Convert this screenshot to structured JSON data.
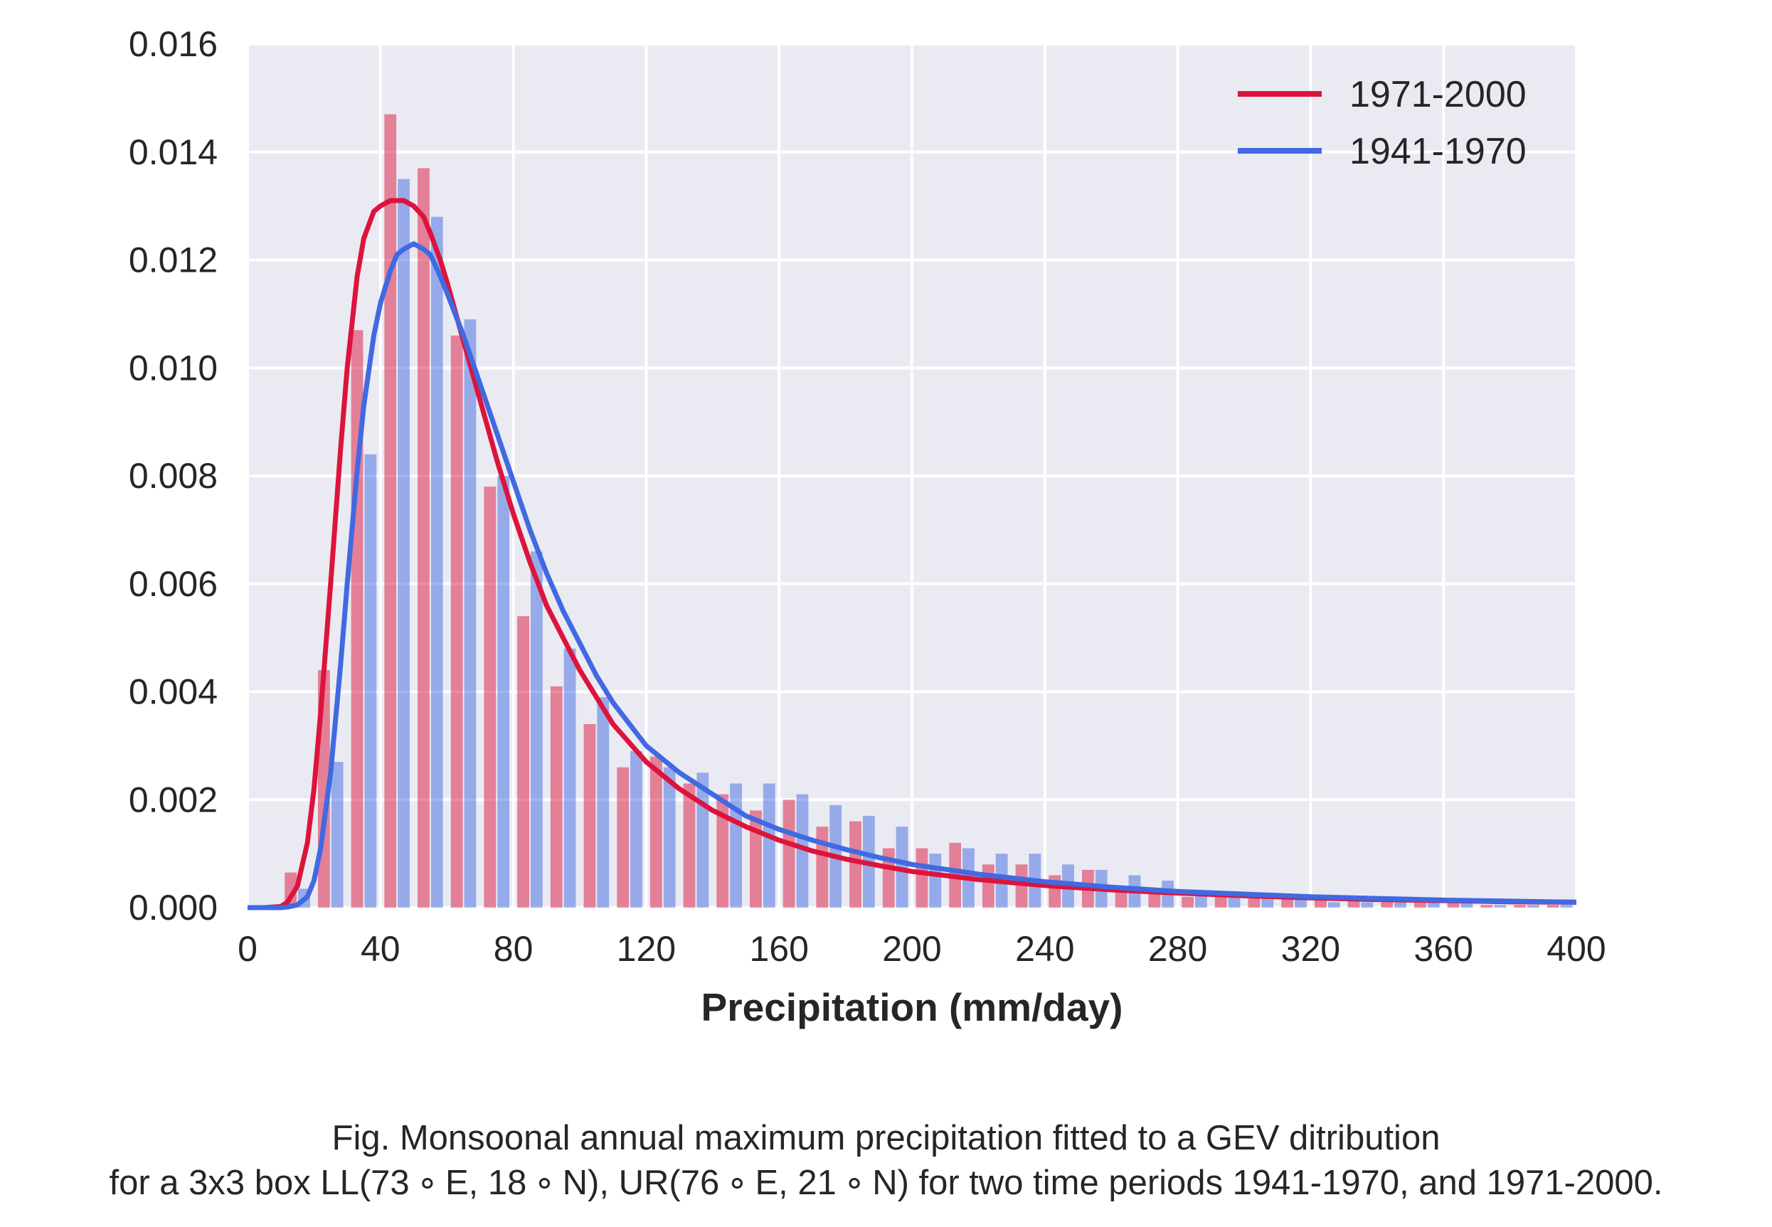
{
  "caption": {
    "line1": "Fig. Monsoonal annual maximum precipitation fitted to a GEV ditribution",
    "line2": "for a 3x3 box LL(73$^\\circ$E, 18$^\\circ$N), UR(76$^\\circ$E, 21$^\\circ$N) for two time periods 1941-1970, and 1971-2000."
  },
  "chart_data": {
    "type": "bar",
    "title": "",
    "xlabel": "Precipitation (mm/day)",
    "ylabel": "",
    "xlim": [
      0,
      400
    ],
    "ylim": [
      0,
      0.016
    ],
    "xticks": [
      "0",
      "40",
      "80",
      "120",
      "160",
      "200",
      "240",
      "280",
      "320",
      "360",
      "400"
    ],
    "yticks": [
      "0.000",
      "0.002",
      "0.004",
      "0.006",
      "0.008",
      "0.010",
      "0.012",
      "0.014",
      "0.016"
    ],
    "grid": true,
    "legend_position": "top-right",
    "colors": {
      "background": "#eaeaf2",
      "grid": "#ffffff",
      "series_1971_2000": "#dc143c",
      "series_1941_1970": "#4169e1"
    },
    "bin_centers": [
      15,
      25,
      35,
      45,
      55,
      65,
      75,
      85,
      95,
      105,
      115,
      125,
      135,
      145,
      155,
      165,
      175,
      185,
      195,
      205,
      215,
      225,
      235,
      245,
      255,
      265,
      275,
      285,
      295,
      305,
      315,
      325,
      335,
      345,
      355,
      365,
      375,
      385,
      395
    ],
    "histograms": [
      {
        "name": "1971-2000",
        "values": [
          0.00065,
          0.0044,
          0.0107,
          0.0147,
          0.0137,
          0.0106,
          0.0078,
          0.0054,
          0.0041,
          0.0034,
          0.0026,
          0.0028,
          0.0023,
          0.0021,
          0.0018,
          0.002,
          0.0015,
          0.0016,
          0.0011,
          0.0011,
          0.0012,
          0.0008,
          0.0008,
          0.0006,
          0.0007,
          0.0004,
          0.0003,
          0.0002,
          0.0002,
          0.0002,
          0.0002,
          0.0002,
          0.00015,
          0.0001,
          0.0001,
          0.0001,
          5e-05,
          5e-05,
          5e-05
        ]
      },
      {
        "name": "1941-1970",
        "values": [
          0.00035,
          0.0027,
          0.0084,
          0.0135,
          0.0128,
          0.0109,
          0.008,
          0.0066,
          0.0048,
          0.0039,
          0.0029,
          0.0026,
          0.0025,
          0.0023,
          0.0023,
          0.0021,
          0.0019,
          0.0017,
          0.0015,
          0.001,
          0.0011,
          0.001,
          0.001,
          0.0008,
          0.0007,
          0.0006,
          0.0005,
          0.0003,
          0.0002,
          0.0002,
          0.0002,
          0.0001,
          0.0001,
          0.0001,
          0.0001,
          0.0001,
          5e-05,
          5e-05,
          5e-05
        ]
      }
    ],
    "fit_curves": [
      {
        "name": "1971-2000",
        "x": [
          0,
          5,
          10,
          12,
          15,
          18,
          20,
          22,
          25,
          28,
          30,
          33,
          35,
          38,
          40,
          43,
          45,
          47,
          50,
          53,
          55,
          58,
          60,
          65,
          70,
          75,
          80,
          85,
          90,
          95,
          100,
          105,
          110,
          120,
          130,
          140,
          150,
          160,
          170,
          180,
          190,
          200,
          220,
          240,
          260,
          280,
          300,
          320,
          340,
          360,
          380,
          400
        ],
        "y": [
          0.0,
          0.0,
          2e-05,
          0.0001,
          0.0004,
          0.0012,
          0.0022,
          0.0036,
          0.006,
          0.0085,
          0.01,
          0.0117,
          0.0124,
          0.0129,
          0.013,
          0.0131,
          0.0131,
          0.0131,
          0.013,
          0.0128,
          0.0125,
          0.012,
          0.0116,
          0.0105,
          0.0094,
          0.0083,
          0.0073,
          0.0064,
          0.0056,
          0.005,
          0.0044,
          0.0039,
          0.0034,
          0.0027,
          0.0022,
          0.0018,
          0.0015,
          0.00125,
          0.00105,
          0.0009,
          0.00078,
          0.00067,
          0.00052,
          0.00041,
          0.00033,
          0.00027,
          0.00022,
          0.00018,
          0.00015,
          0.00013,
          0.00011,
          0.0001
        ]
      },
      {
        "name": "1941-1970",
        "x": [
          0,
          5,
          10,
          12,
          15,
          18,
          20,
          22,
          25,
          28,
          30,
          33,
          35,
          38,
          40,
          43,
          45,
          47,
          50,
          53,
          55,
          58,
          60,
          65,
          70,
          75,
          80,
          85,
          90,
          95,
          100,
          105,
          110,
          120,
          130,
          140,
          150,
          160,
          170,
          180,
          190,
          200,
          220,
          240,
          260,
          280,
          300,
          320,
          340,
          360,
          380,
          400
        ],
        "y": [
          0.0,
          0.0,
          0.0,
          1e-05,
          5e-05,
          0.0002,
          0.0005,
          0.0011,
          0.0025,
          0.0045,
          0.006,
          0.0081,
          0.0093,
          0.0106,
          0.0112,
          0.0118,
          0.0121,
          0.0122,
          0.0123,
          0.0122,
          0.0121,
          0.0117,
          0.0114,
          0.0106,
          0.0097,
          0.0088,
          0.0079,
          0.007,
          0.0062,
          0.0055,
          0.0049,
          0.0043,
          0.0038,
          0.003,
          0.0025,
          0.0021,
          0.0017,
          0.00145,
          0.00125,
          0.00108,
          0.00093,
          0.0008,
          0.00062,
          0.00048,
          0.00038,
          0.0003,
          0.00025,
          0.0002,
          0.00017,
          0.00014,
          0.00012,
          0.0001
        ]
      }
    ]
  }
}
